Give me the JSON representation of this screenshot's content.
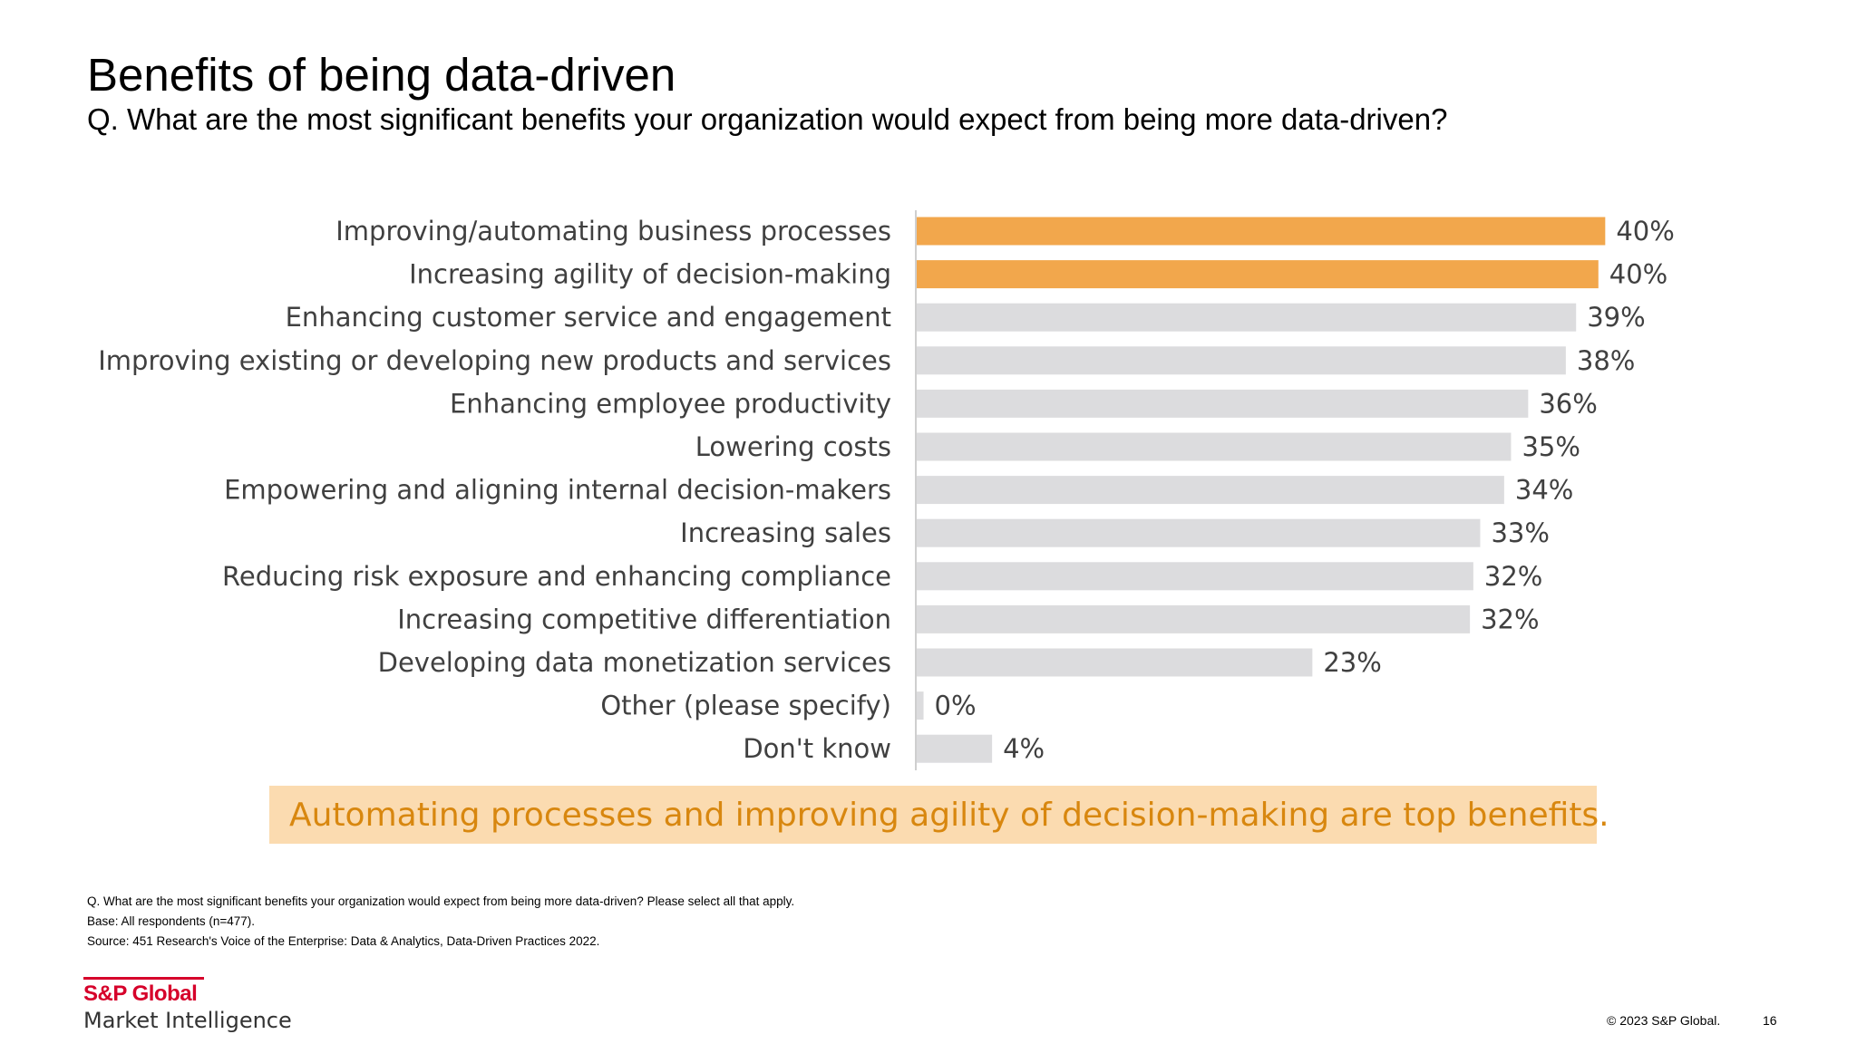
{
  "title": "Benefits of being data-driven",
  "subtitle": "Q. What are the most significant benefits your organization would expect from being more data-driven?",
  "chart_data": {
    "type": "bar",
    "orientation": "horizontal",
    "categories": [
      "Improving/automating business processes",
      "Increasing agility of decision-making",
      "Enhancing customer service and engagement",
      "Improving existing or developing new products and services",
      "Enhancing employee productivity",
      "Lowering costs",
      "Empowering and aligning internal decision-makers",
      "Increasing sales",
      "Reducing risk exposure and enhancing compliance",
      "Increasing competitive differentiation",
      "Developing data monetization services",
      "Other (please specify)",
      "Don't know"
    ],
    "values": [
      40.2,
      39.8,
      38.5,
      37.9,
      35.7,
      34.7,
      34.3,
      32.9,
      32.5,
      32.3,
      23.1,
      0.4,
      4.4
    ],
    "value_labels": [
      "40%",
      "40%",
      "39%",
      "38%",
      "36%",
      "35%",
      "34%",
      "33%",
      "32%",
      "32%",
      "23%",
      "0%",
      "4%"
    ],
    "highlight": [
      true,
      true,
      false,
      false,
      false,
      false,
      false,
      false,
      false,
      false,
      false,
      false,
      false
    ],
    "xlim": [
      0,
      41.4
    ],
    "grid": false,
    "legend": "none"
  },
  "colors": {
    "highlight_bar": "#f2a74c",
    "default_bar": "#dcdcde",
    "axis_line": "#bfbfbf",
    "callout_bg": "#fbdbb0",
    "callout_text": "#d8870f",
    "brand_red": "#d6002a"
  },
  "callout": "Automating processes and improving agility of decision-making are top benefits.",
  "footnotes": [
    "Q. What are the most significant benefits your organization would expect from being more data-driven? Please select all that apply.",
    "Base: All respondents (n=477).",
    "Source: 451 Research's Voice of the Enterprise: Data & Analytics, Data-Driven Practices 2022."
  ],
  "brand": {
    "line1": "S&P Global",
    "line2": "Market Intelligence"
  },
  "copyright": "© 2023 S&P Global.",
  "page_number": "16"
}
